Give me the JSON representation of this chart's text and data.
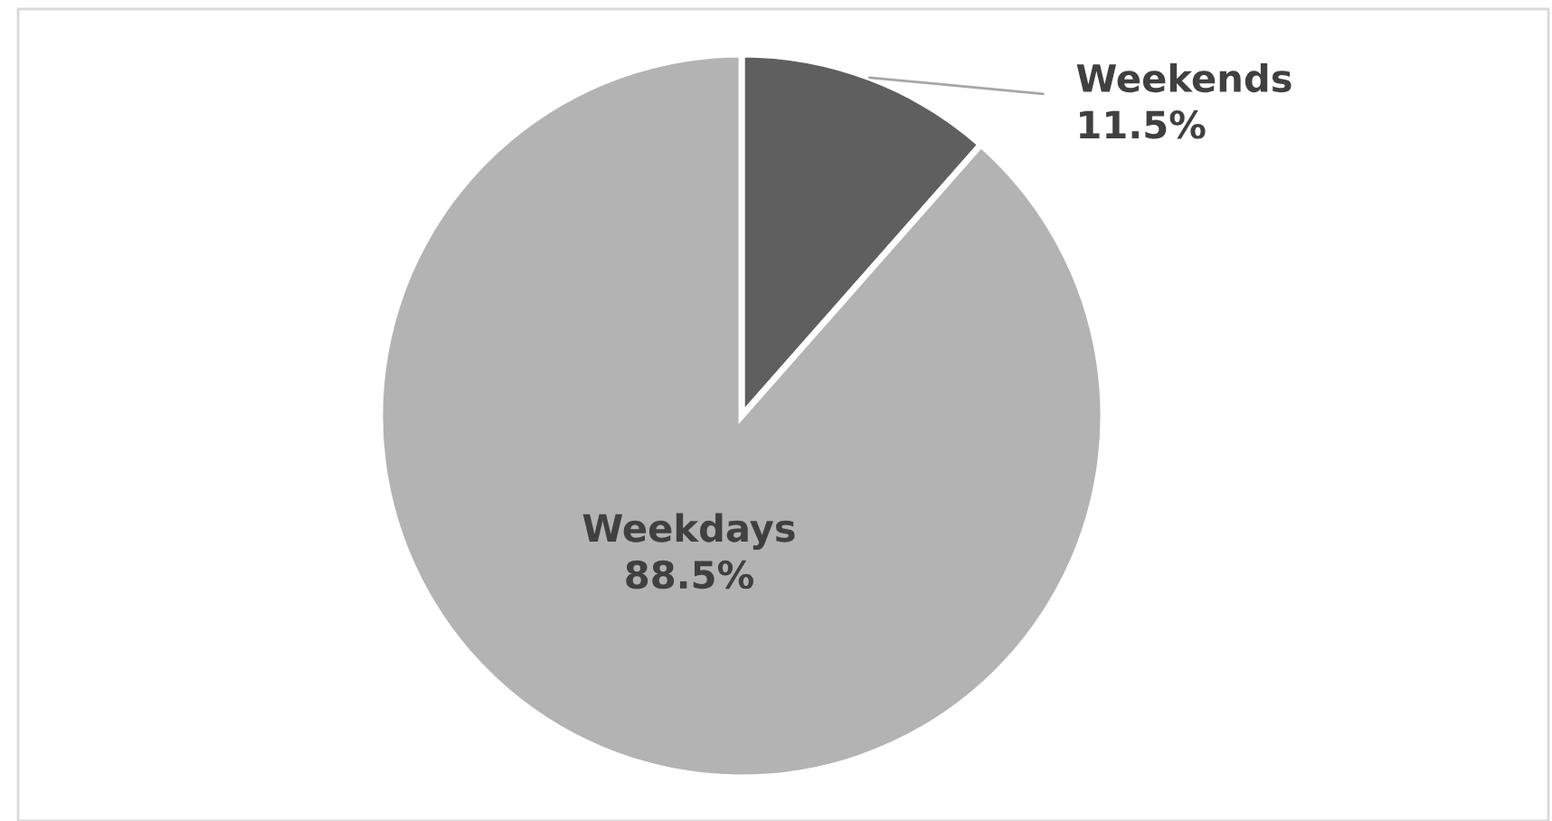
{
  "chart_data": {
    "type": "pie",
    "categories": [
      "Weekends",
      "Weekdays"
    ],
    "values": [
      11.5,
      88.5
    ],
    "colors": [
      "#5f5f5f",
      "#b3b3b3"
    ],
    "value_labels": [
      "11.5%",
      "88.5%"
    ],
    "legend": false
  }
}
